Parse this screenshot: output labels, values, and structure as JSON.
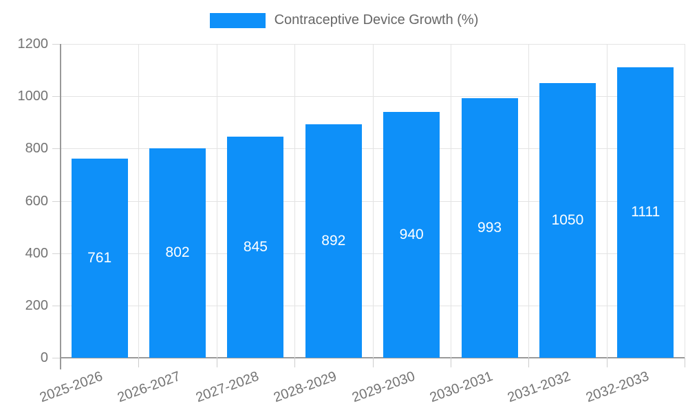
{
  "chart_data": {
    "type": "bar",
    "title": "",
    "legend": "Contraceptive Device Growth (%)",
    "legend_position": "top",
    "categories": [
      "2025-2026",
      "2026-2027",
      "2027-2028",
      "2028-2029",
      "2029-2030",
      "2030-2031",
      "2031-2032",
      "2032-2033"
    ],
    "values": [
      761,
      802,
      845,
      892,
      940,
      993,
      1050,
      1111
    ],
    "xlabel": "",
    "ylabel": "",
    "ylim": [
      0,
      1200
    ],
    "yticks": [
      0,
      200,
      400,
      600,
      800,
      1000,
      1200
    ],
    "grid": true,
    "x_label_rotation_deg": -20,
    "bar_color": "#0e90f9",
    "value_label_color": "#ffffff",
    "tick_label_color": "#737373",
    "legend_text_color": "#666666",
    "grid_color": "#e3e3e3",
    "axis_color": "#999999"
  }
}
